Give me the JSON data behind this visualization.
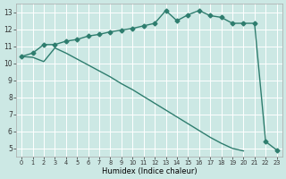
{
  "xlabel": "Humidex (Indice chaleur)",
  "x": [
    0,
    1,
    2,
    3,
    4,
    5,
    6,
    7,
    8,
    9,
    10,
    11,
    12,
    13,
    14,
    15,
    16,
    17,
    18,
    19,
    20,
    21,
    22,
    23
  ],
  "y_upper": [
    10.4,
    10.6,
    11.1,
    11.1,
    11.3,
    11.4,
    11.6,
    11.7,
    11.85,
    11.95,
    12.05,
    12.2,
    12.35,
    13.1,
    12.5,
    12.85,
    13.1,
    12.8,
    12.7,
    12.35,
    12.35,
    12.35,
    5.4,
    4.9
  ],
  "y_lower": [
    10.4,
    10.35,
    10.1,
    10.9,
    10.6,
    10.25,
    9.9,
    9.55,
    9.2,
    8.8,
    8.45,
    8.05,
    7.65,
    7.25,
    6.85,
    6.45,
    6.05,
    5.65,
    5.3,
    5.0,
    4.85,
    null,
    null,
    null
  ],
  "xlim": [
    -0.5,
    23.5
  ],
  "ylim": [
    4.5,
    13.5
  ],
  "yticks": [
    5,
    6,
    7,
    8,
    9,
    10,
    11,
    12,
    13
  ],
  "xticks": [
    0,
    1,
    2,
    3,
    4,
    5,
    6,
    7,
    8,
    9,
    10,
    11,
    12,
    13,
    14,
    15,
    16,
    17,
    18,
    19,
    20,
    21,
    22,
    23
  ],
  "line_color": "#2e7d6e",
  "bg_color": "#cce8e4",
  "grid_color": "#ffffff",
  "marker_size": 2.5,
  "line_width": 1.0
}
